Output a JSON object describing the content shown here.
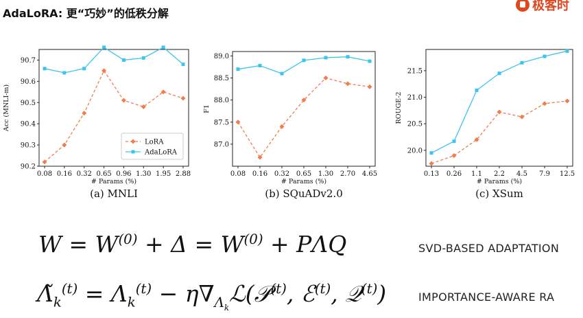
{
  "title": "AdaLoRA: 更“巧妙”的低秩分解",
  "logo": {
    "text": "极客时"
  },
  "chart_data": [
    {
      "type": "line",
      "caption": "(a) MNLI",
      "xlabel": "# Params (%)",
      "ylabel": "Acc (MNLI-m)",
      "categories": [
        "0.08",
        "0.16",
        "0.32",
        "0.65",
        "0.96",
        "1.30",
        "1.95",
        "2.88"
      ],
      "ylim": [
        90.2,
        90.75
      ],
      "yticks": [
        90.2,
        90.3,
        90.4,
        90.5,
        90.6,
        90.7
      ],
      "ytick_labels": [
        "90.2",
        "90.3",
        "90.4",
        "90.5",
        "90.6",
        "90.7"
      ],
      "legend": "bottom-right",
      "series": [
        {
          "name": "LoRA",
          "color": "#f07c4f",
          "dashed": true,
          "marker": "diamond",
          "values": [
            90.22,
            90.3,
            90.45,
            90.65,
            90.51,
            90.48,
            90.55,
            90.52
          ]
        },
        {
          "name": "AdaLoRA",
          "color": "#3cc4ee",
          "dashed": false,
          "marker": "square",
          "values": [
            90.66,
            90.64,
            90.66,
            90.76,
            90.7,
            90.71,
            90.76,
            90.68
          ]
        }
      ]
    },
    {
      "type": "line",
      "caption": "(b) SQuADv2.0",
      "xlabel": "# Params (%)",
      "ylabel": "F1",
      "categories": [
        "0.08",
        "0.16",
        "0.32",
        "0.65",
        "1.30",
        "2.70",
        "4.65"
      ],
      "ylim": [
        86.5,
        89.1
      ],
      "yticks": [
        87.0,
        87.5,
        88.0,
        88.5,
        89.0
      ],
      "ytick_labels": [
        "87.0",
        "87.5",
        "88.0",
        "88.5",
        "89.0"
      ],
      "series": [
        {
          "name": "LoRA",
          "color": "#f07c4f",
          "dashed": true,
          "marker": "diamond",
          "values": [
            87.5,
            86.7,
            87.4,
            88.0,
            88.5,
            88.37,
            88.3
          ]
        },
        {
          "name": "AdaLoRA",
          "color": "#3cc4ee",
          "dashed": false,
          "marker": "square",
          "values": [
            88.7,
            88.78,
            88.6,
            88.9,
            88.96,
            88.98,
            88.88
          ]
        }
      ]
    },
    {
      "type": "line",
      "caption": "(c) XSum",
      "xlabel": "# Params (%)",
      "ylabel": "ROUGE-2",
      "categories": [
        "0.13",
        "0.26",
        "1.1",
        "2.2",
        "4.5",
        "7.9",
        "12.5"
      ],
      "ylim": [
        19.7,
        21.9
      ],
      "yticks": [
        20.0,
        20.5,
        21.0,
        21.5
      ],
      "ytick_labels": [
        "20.0",
        "20.5",
        "21.0",
        "21.5"
      ],
      "series": [
        {
          "name": "LoRA",
          "color": "#f07c4f",
          "dashed": true,
          "marker": "diamond",
          "values": [
            19.75,
            19.9,
            20.2,
            20.72,
            20.63,
            20.88,
            20.93
          ]
        },
        {
          "name": "AdaLoRA",
          "color": "#3cc4ee",
          "dashed": false,
          "marker": "square",
          "values": [
            19.95,
            20.17,
            21.13,
            21.45,
            21.65,
            21.77,
            21.87
          ]
        }
      ]
    }
  ],
  "equations": {
    "eq1_label": "SVD-BASED ADAPTATION",
    "eq2_label": "IMPORTANCE-AWARE RA"
  }
}
